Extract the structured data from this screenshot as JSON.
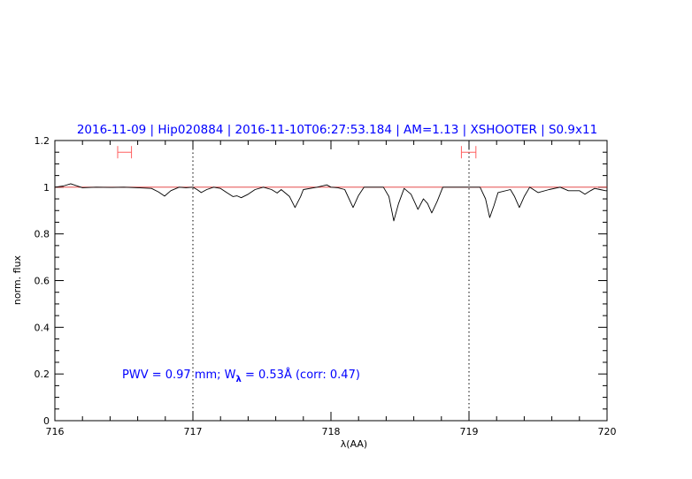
{
  "chart_data": {
    "type": "line",
    "title": "2016-11-09 | Hip020884 | 2016-11-10T06:27:53.184 | AM=1.13 | XSHOOTER | S0.9x11",
    "xlabel": "λ(AA)",
    "ylabel": "norm. flux",
    "xlim": [
      716,
      720
    ],
    "ylim": [
      0,
      1.2
    ],
    "xticks": [
      716,
      717,
      718,
      719,
      720
    ],
    "xtick_labels": [
      "716",
      "717",
      "718",
      "719",
      "720"
    ],
    "yticks": [
      0,
      0.2,
      0.4,
      0.6,
      0.8,
      1,
      1.2
    ],
    "ytick_labels": [
      "0",
      "0.2",
      "0.4",
      "0.6",
      "0.8",
      "1",
      "1.2"
    ],
    "x_minor_step": 0.2,
    "y_minor_step": 0.05,
    "grid": false,
    "reference_line": 1.0,
    "vertical_dotted_lines": [
      717,
      719
    ],
    "interval_markers": [
      {
        "x": [
          716.455,
          716.555
        ],
        "y": 1.15
      },
      {
        "x": [
          718.945,
          719.05
        ],
        "y": 1.15
      }
    ],
    "annotation": {
      "prefix": "PWV  =  0.97  mm;  W",
      "subscript": "λ",
      "suffix": "  =  0.53Å  (corr: 0.47)"
    },
    "series": [
      {
        "x": [
          716.0,
          716.06,
          716.115,
          716.2,
          716.3,
          716.4,
          716.5,
          716.6,
          716.7,
          716.75,
          716.795,
          716.84,
          716.9,
          716.95,
          717.0,
          717.03,
          717.06,
          717.1,
          717.15,
          717.2,
          717.25,
          717.29,
          717.32,
          717.35,
          717.4,
          717.45,
          717.51,
          717.57,
          717.61,
          717.64,
          717.7,
          717.74,
          717.78,
          717.8,
          717.9,
          717.97,
          718.0,
          718.05,
          718.1,
          718.16,
          718.2,
          718.24,
          718.3,
          718.38,
          718.42,
          718.455,
          718.49,
          718.53,
          718.58,
          718.63,
          718.67,
          718.7,
          718.73,
          718.77,
          718.81,
          718.9,
          719.0,
          719.08,
          719.12,
          719.15,
          719.18,
          719.21,
          719.3,
          719.33,
          719.365,
          719.4,
          719.44,
          719.5,
          719.58,
          719.66,
          719.72,
          719.8,
          719.84,
          719.88,
          719.91,
          719.95,
          719.99,
          720.0
        ],
        "y": [
          1.0,
          1.005,
          1.015,
          0.998,
          1.0,
          0.999,
          1.0,
          0.998,
          0.995,
          0.98,
          0.962,
          0.985,
          1.0,
          0.998,
          1.0,
          0.99,
          0.977,
          0.99,
          1.0,
          0.995,
          0.975,
          0.96,
          0.963,
          0.955,
          0.97,
          0.99,
          1.0,
          0.99,
          0.975,
          0.99,
          0.96,
          0.913,
          0.96,
          0.99,
          1.0,
          1.01,
          1.0,
          0.998,
          0.99,
          0.913,
          0.965,
          1.0,
          1.0,
          1.0,
          0.96,
          0.856,
          0.93,
          0.995,
          0.97,
          0.905,
          0.95,
          0.93,
          0.89,
          0.94,
          1.0,
          1.0,
          1.0,
          1.0,
          0.95,
          0.87,
          0.92,
          0.977,
          0.99,
          0.96,
          0.913,
          0.96,
          1.0,
          0.977,
          0.99,
          1.0,
          0.985,
          0.985,
          0.97,
          0.985,
          0.995,
          0.99,
          0.985,
          0.985
        ]
      }
    ],
    "colors": {
      "title": "#0000ff",
      "spectrum": "#000000",
      "reference": "#e03030",
      "markers": "#ff6060",
      "annotation": "#0000ff"
    }
  }
}
